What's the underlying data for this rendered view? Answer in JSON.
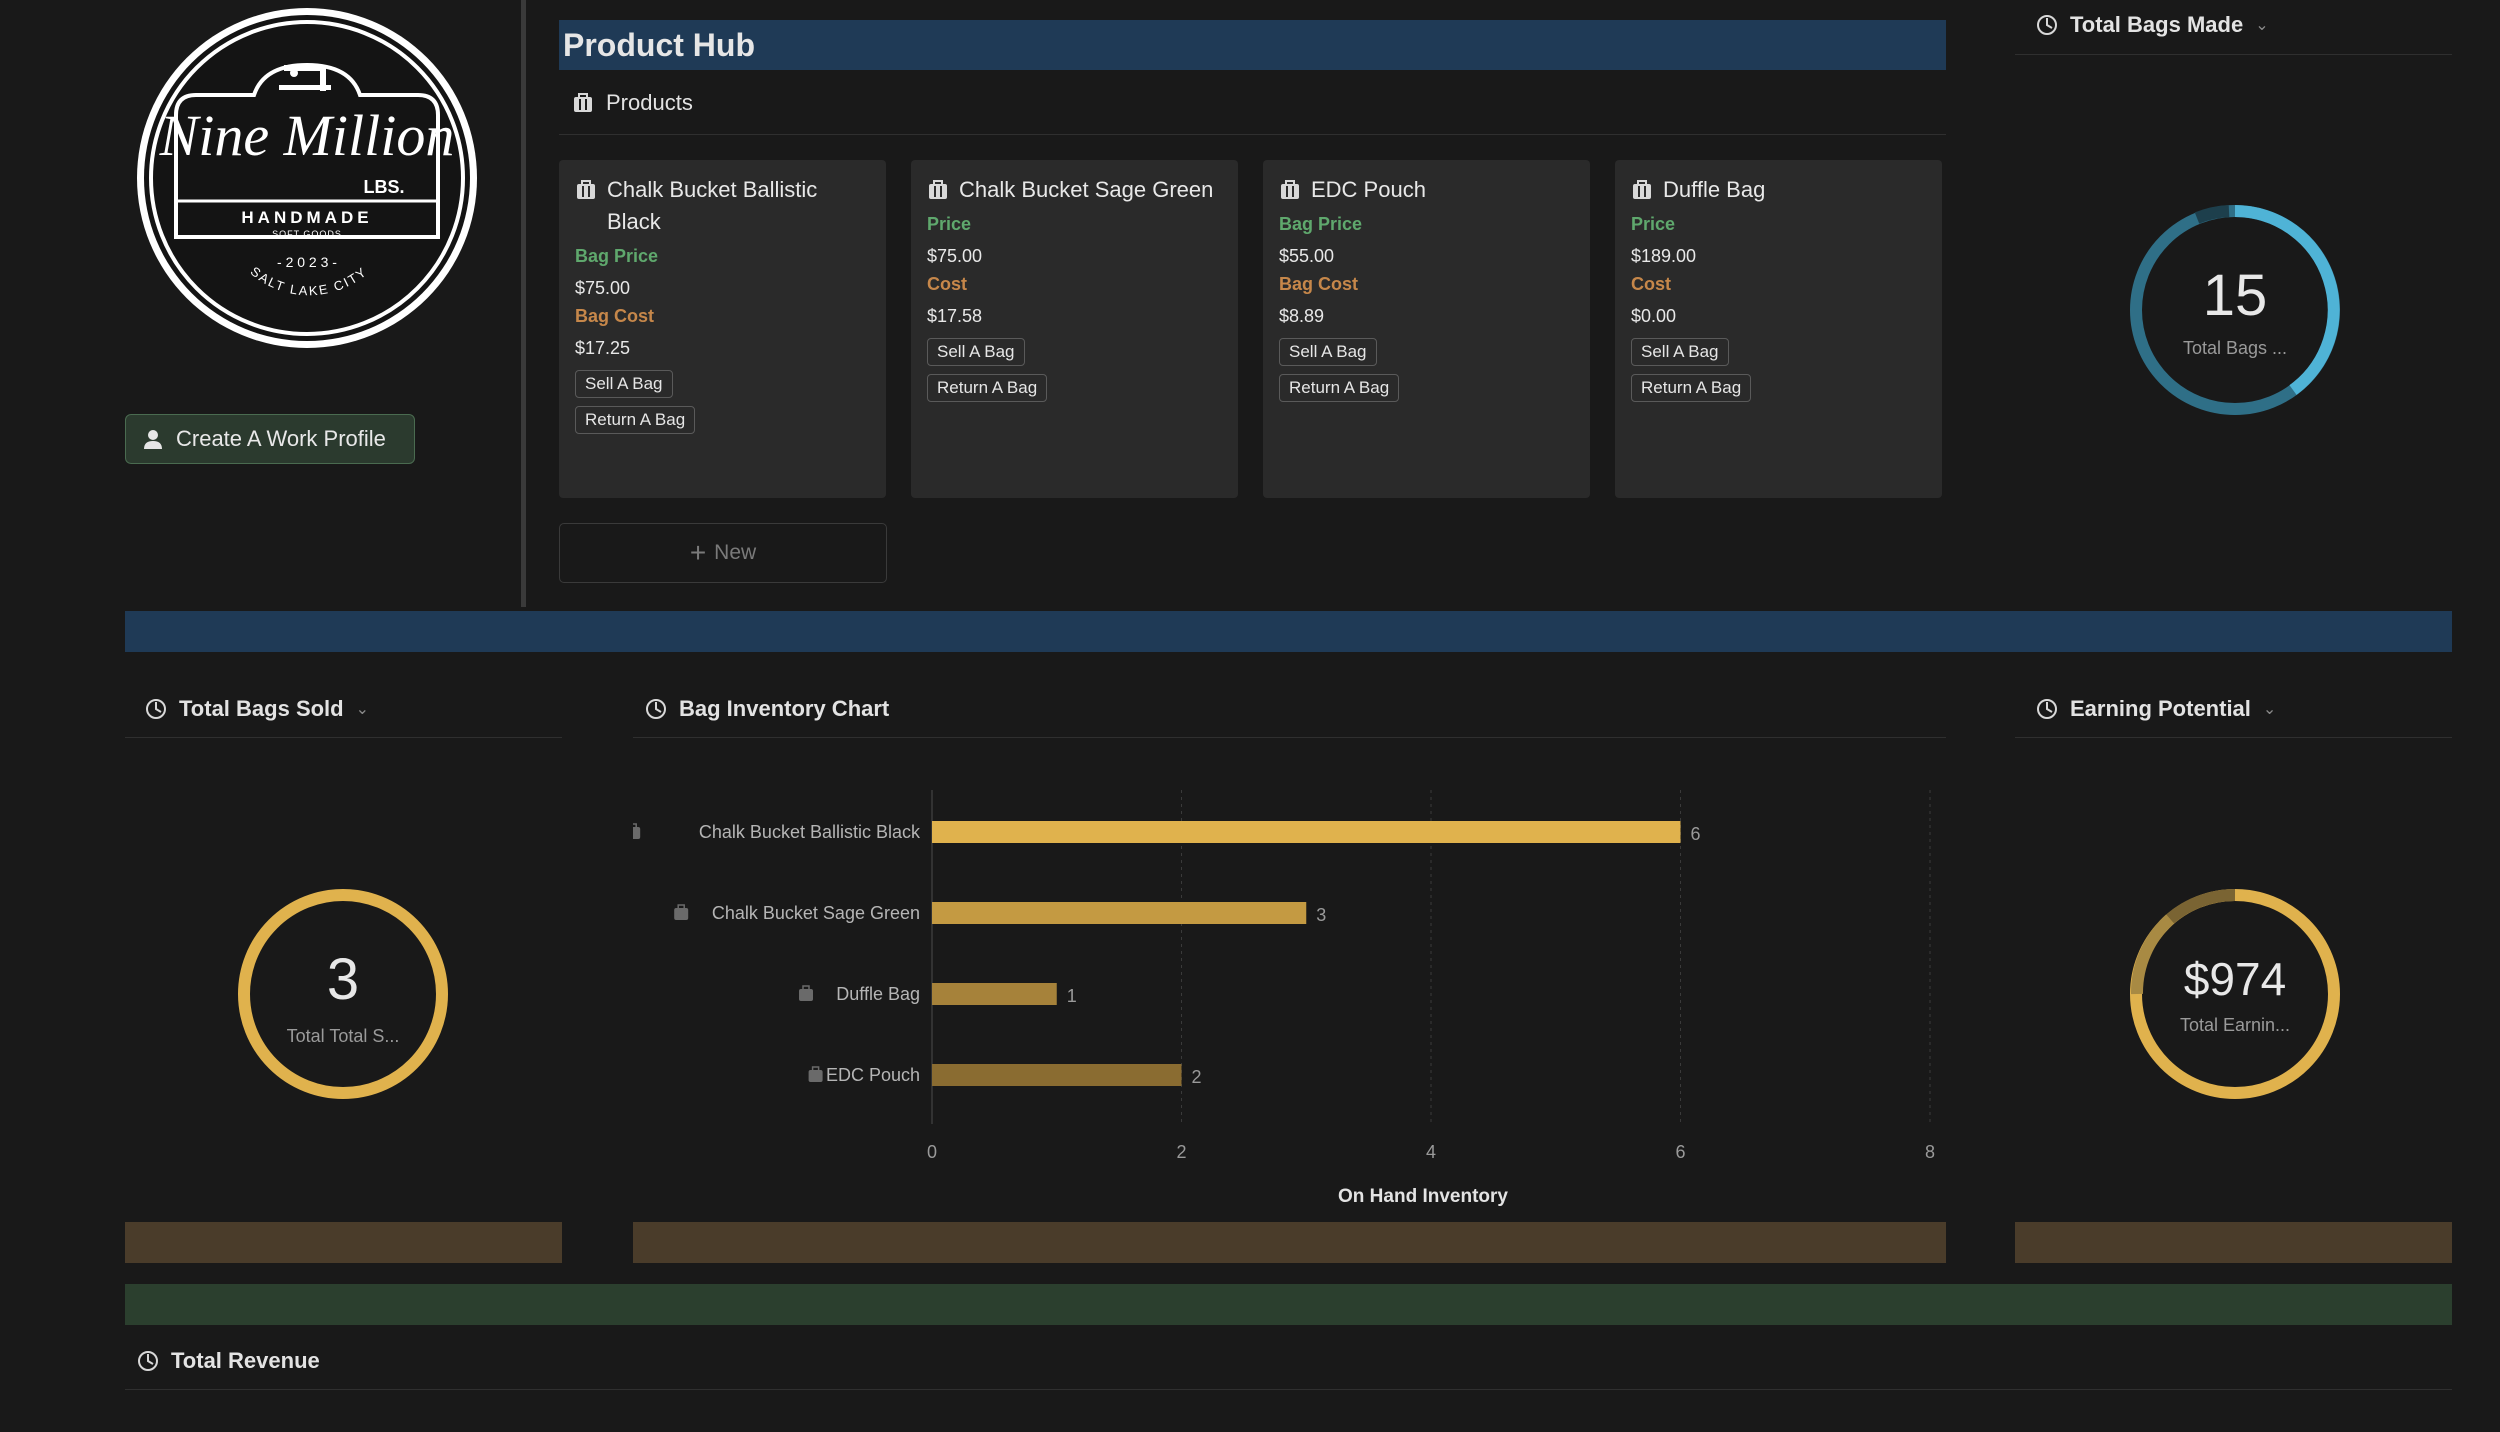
{
  "logo": {
    "brand_line1": "Nine Million",
    "brand_lbs": "LBS.",
    "brand_handmade": "HANDMADE",
    "brand_softgoods": "SOFT GOODS",
    "brand_year": "- 2 0 2 3 -",
    "brand_city": "SALT LAKE CITY"
  },
  "sidebar": {
    "create_profile_label": "Create A Work Profile"
  },
  "hub": {
    "title": "Product Hub",
    "products_label": "Products",
    "new_label": "New",
    "cards": [
      {
        "title": "Chalk Bucket Ballistic Black",
        "price_label": "Bag Price",
        "price": "$75.00",
        "cost_label": "Bag Cost",
        "cost": "$17.25",
        "sell_label": "Sell A Bag",
        "return_label": "Return A Bag"
      },
      {
        "title": "Chalk Bucket Sage Green",
        "price_label": "Price",
        "price": "$75.00",
        "cost_label": "Cost",
        "cost": "$17.58",
        "sell_label": "Sell A Bag",
        "return_label": "Return A Bag"
      },
      {
        "title": "EDC Pouch",
        "price_label": "Bag Price",
        "price": "$55.00",
        "cost_label": "Bag Cost",
        "cost": "$8.89",
        "sell_label": "Sell A Bag",
        "return_label": "Return A Bag"
      },
      {
        "title": "Duffle Bag",
        "price_label": "Price",
        "price": "$189.00",
        "cost_label": "Cost",
        "cost": "$0.00",
        "sell_label": "Sell A Bag",
        "return_label": "Return A Bag"
      }
    ]
  },
  "widgets": {
    "total_made": {
      "title": "Total Bags Made",
      "value": "15",
      "label": "Total Bags ..."
    },
    "total_sold": {
      "title": "Total Bags Sold",
      "value": "3",
      "label": "Total Total S..."
    },
    "earning": {
      "title": "Earning Potential",
      "value": "$974",
      "label": "Total Earnin..."
    },
    "inventory_title": "Bag Inventory Chart",
    "revenue_title": "Total Revenue"
  },
  "colors": {
    "accent_blue": "#4aa3c7",
    "gold": "#e0b24d",
    "band_blue": "#1f3a56",
    "band_brown": "#4a3c2a",
    "band_green": "#2b3f2e"
  },
  "chart_data": {
    "type": "bar",
    "orientation": "horizontal",
    "categories": [
      "Chalk Bucket Ballistic Black",
      "Chalk Bucket Sage Green",
      "Duffle Bag",
      "EDC Pouch"
    ],
    "values": [
      6,
      3,
      1,
      2
    ],
    "xlabel": "On Hand Inventory",
    "xlim": [
      0,
      8
    ],
    "xticks": [
      "0",
      "2",
      "4",
      "6",
      "8"
    ],
    "grid": true
  }
}
